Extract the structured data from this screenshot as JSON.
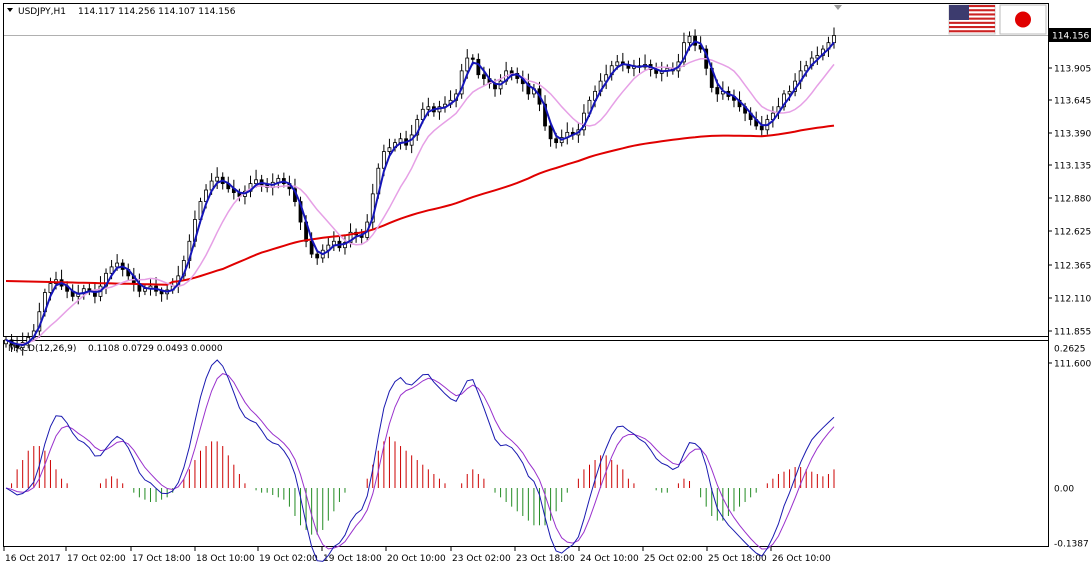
{
  "header": {
    "symbol_timeframe": "USDJPY,H1",
    "ohlc": "114.117 114.256 114.107 114.156"
  },
  "macd_header": {
    "label": "MACD(12,26,9)",
    "values": "0.1108 0.0729 0.0493 0.0000"
  },
  "price_tag": "114.156",
  "flags": [
    {
      "name": "us-flag-icon"
    },
    {
      "name": "jp-flag-icon"
    }
  ],
  "colors": {
    "fast_ma": "#1414b8",
    "mid_ma": "#e6a0e6",
    "slow_ma": "#e00000",
    "histogram_pos": "#cc0000",
    "histogram_neg": "#228b22",
    "macd_line": "#1a1ab0",
    "signal_line": "#9a32cd",
    "candles": "#000000"
  },
  "chart_data": [
    {
      "type": "candlestick",
      "title": "USDJPY,H1",
      "y_ticks": [
        "114.156",
        "113.905",
        "113.645",
        "113.390",
        "113.135",
        "112.880",
        "112.625",
        "112.365",
        "112.110",
        "111.855",
        "111.600"
      ],
      "ylim": [
        111.6,
        114.156
      ],
      "x_ticks": [
        "16 Oct 2017",
        "17 Oct 02:00",
        "17 Oct 18:00",
        "18 Oct 10:00",
        "19 Oct 02:00",
        "19 Oct 18:00",
        "20 Oct 10:00",
        "23 Oct 02:00",
        "23 Oct 18:00",
        "24 Oct 10:00",
        "25 Oct 02:00",
        "25 Oct 18:00",
        "26 Oct 10:00"
      ],
      "close_path": [
        111.78,
        111.74,
        111.72,
        111.76,
        111.8,
        111.85,
        112.0,
        112.15,
        112.22,
        112.25,
        112.2,
        112.16,
        112.12,
        112.14,
        112.18,
        112.16,
        112.12,
        112.2,
        112.3,
        112.35,
        112.38,
        112.33,
        112.28,
        112.22,
        112.16,
        112.18,
        112.2,
        112.16,
        112.14,
        112.17,
        112.2,
        112.28,
        112.4,
        112.55,
        112.72,
        112.86,
        112.95,
        113.02,
        113.05,
        113.0,
        112.96,
        112.93,
        112.9,
        112.94,
        113.0,
        113.03,
        112.99,
        112.97,
        113.01,
        113.04,
        113.0,
        112.96,
        112.86,
        112.7,
        112.55,
        112.45,
        112.42,
        112.48,
        112.52,
        112.55,
        112.5,
        112.54,
        112.62,
        112.6,
        112.58,
        112.7,
        112.92,
        113.12,
        113.25,
        113.28,
        113.32,
        113.35,
        113.3,
        113.38,
        113.5,
        113.58,
        113.6,
        113.56,
        113.6,
        113.62,
        113.65,
        113.7,
        113.88,
        113.98,
        113.97,
        113.85,
        113.82,
        113.78,
        113.74,
        113.8,
        113.88,
        113.86,
        113.82,
        113.78,
        113.7,
        113.74,
        113.62,
        113.45,
        113.35,
        113.32,
        113.36,
        113.4,
        113.38,
        113.42,
        113.55,
        113.65,
        113.72,
        113.8,
        113.85,
        113.92,
        113.95,
        113.93,
        113.9,
        113.92,
        113.91,
        113.93,
        113.89,
        113.86,
        113.88,
        113.9,
        113.88,
        113.95,
        114.1,
        114.15,
        114.08,
        114.05,
        113.9,
        113.75,
        113.7,
        113.72,
        113.68,
        113.65,
        113.6,
        113.55,
        113.5,
        113.45,
        113.42,
        113.5,
        113.55,
        113.6,
        113.7,
        113.72,
        113.8,
        113.88,
        113.92,
        113.98,
        114.0,
        114.05,
        114.1,
        114.156
      ],
      "series": [
        {
          "name": "fast_ma"
        },
        {
          "name": "mid_ma"
        },
        {
          "name": "slow_ma"
        }
      ]
    },
    {
      "type": "bar",
      "title": "MACD(12,26,9) 0.1108 0.0729 0.0493 0.0000",
      "y_ticks": [
        "0.2625",
        "0.00",
        "-0.1387"
      ],
      "ylim": [
        -0.1387,
        0.2625
      ],
      "histogram": [
        0.0,
        0.01,
        0.04,
        0.06,
        0.08,
        0.09,
        0.09,
        0.08,
        0.06,
        0.04,
        0.02,
        0.01,
        0.0,
        0.0,
        0.0,
        0.0,
        0.0,
        0.01,
        0.02,
        0.025,
        0.02,
        0.01,
        0.0,
        -0.01,
        -0.02,
        -0.025,
        -0.03,
        -0.03,
        -0.025,
        -0.02,
        -0.01,
        0.0,
        0.02,
        0.04,
        0.06,
        0.08,
        0.09,
        0.1,
        0.1,
        0.09,
        0.07,
        0.05,
        0.03,
        0.01,
        0.0,
        -0.005,
        -0.01,
        -0.01,
        -0.015,
        -0.02,
        -0.025,
        -0.04,
        -0.06,
        -0.08,
        -0.09,
        -0.1,
        -0.1,
        -0.09,
        -0.07,
        -0.05,
        -0.03,
        -0.01,
        0.0,
        0.0,
        0.0,
        0.02,
        0.05,
        0.08,
        0.1,
        0.11,
        0.1,
        0.09,
        0.08,
        0.07,
        0.06,
        0.05,
        0.04,
        0.03,
        0.02,
        0.01,
        0.0,
        0.0,
        0.01,
        0.03,
        0.04,
        0.03,
        0.02,
        0.0,
        -0.01,
        -0.02,
        -0.03,
        -0.04,
        -0.05,
        -0.06,
        -0.07,
        -0.08,
        -0.08,
        -0.08,
        -0.07,
        -0.05,
        -0.03,
        -0.01,
        0.0,
        0.02,
        0.04,
        0.05,
        0.06,
        0.07,
        0.07,
        0.06,
        0.05,
        0.04,
        0.02,
        0.01,
        0.0,
        0.0,
        0.0,
        -0.005,
        -0.01,
        -0.01,
        0.0,
        0.01,
        0.02,
        0.015,
        0.0,
        -0.02,
        -0.04,
        -0.06,
        -0.07,
        -0.07,
        -0.06,
        -0.05,
        -0.04,
        -0.03,
        -0.02,
        -0.01,
        0.0,
        0.01,
        0.02,
        0.03,
        0.035,
        0.04,
        0.045,
        0.045,
        0.04,
        0.035,
        0.03,
        0.025,
        0.03,
        0.04
      ]
    }
  ]
}
